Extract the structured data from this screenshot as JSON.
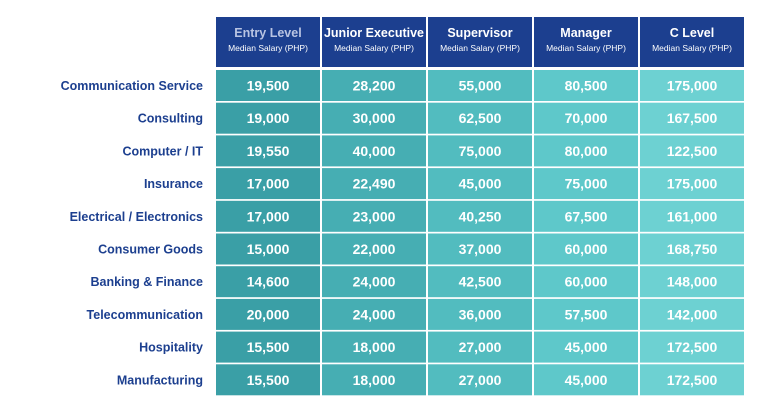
{
  "chart_data": {
    "type": "table",
    "columns": [
      {
        "title": "Entry Level",
        "subtitle": "Median Salary (PHP)"
      },
      {
        "title": "Junior Executive",
        "subtitle": "Median Salary (PHP)"
      },
      {
        "title": "Supervisor",
        "subtitle": "Median Salary (PHP)"
      },
      {
        "title": "Manager",
        "subtitle": "Median Salary (PHP)"
      },
      {
        "title": "C Level",
        "subtitle": "Median Salary (PHP)"
      }
    ],
    "rows": [
      {
        "label": "Communication Service",
        "values": [
          "19,500",
          "28,200",
          "55,000",
          "80,500",
          "175,000"
        ]
      },
      {
        "label": "Consulting",
        "values": [
          "19,000",
          "30,000",
          "62,500",
          "70,000",
          "167,500"
        ]
      },
      {
        "label": "Computer / IT",
        "values": [
          "19,550",
          "40,000",
          "75,000",
          "80,000",
          "122,500"
        ]
      },
      {
        "label": "Insurance",
        "values": [
          "17,000",
          "22,490",
          "45,000",
          "75,000",
          "175,000"
        ]
      },
      {
        "label": "Electrical / Electronics",
        "values": [
          "17,000",
          "23,000",
          "40,250",
          "67,500",
          "161,000"
        ]
      },
      {
        "label": "Consumer Goods",
        "values": [
          "15,000",
          "22,000",
          "37,000",
          "60,000",
          "168,750"
        ]
      },
      {
        "label": "Banking & Finance",
        "values": [
          "14,600",
          "24,000",
          "42,500",
          "60,000",
          "148,000"
        ]
      },
      {
        "label": "Telecommunication",
        "values": [
          "20,000",
          "24,000",
          "36,000",
          "57,500",
          "142,000"
        ]
      },
      {
        "label": "Hospitality",
        "values": [
          "15,500",
          "18,000",
          "27,000",
          "45,000",
          "172,500"
        ]
      },
      {
        "label": "Manufacturing",
        "values": [
          "15,500",
          "18,000",
          "27,000",
          "45,000",
          "172,500"
        ]
      }
    ]
  },
  "colors": {
    "header_bg": "#1c3f8f",
    "row_label": "#1c3f8f",
    "column_fills": [
      "#3a9fa6",
      "#46aeb3",
      "#52bcbf",
      "#5ec8ca",
      "#6dd1d2"
    ]
  }
}
